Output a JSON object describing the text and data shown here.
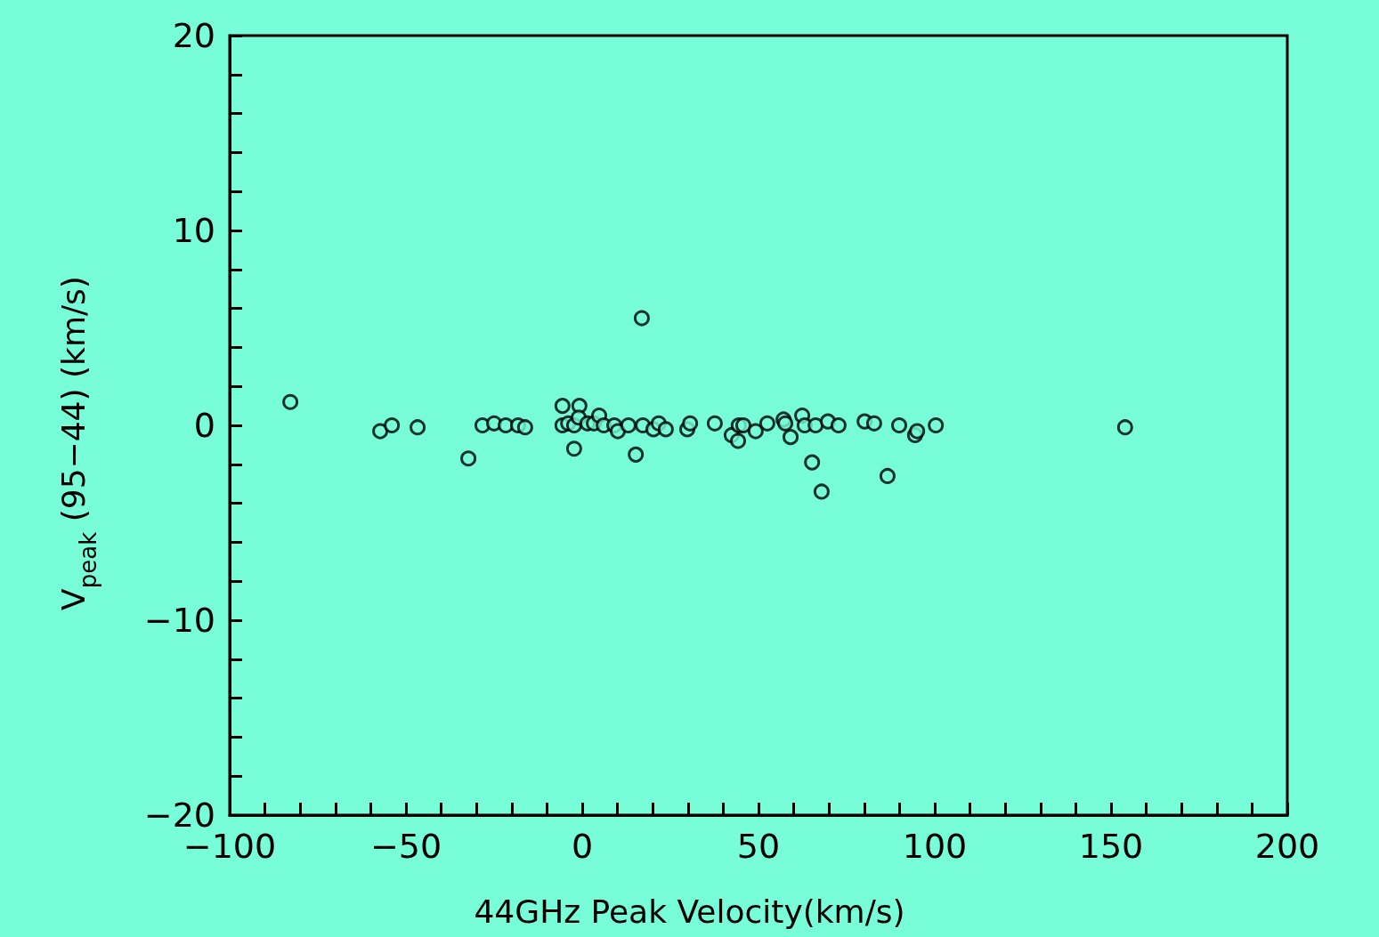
{
  "chart_data": {
    "type": "scatter",
    "xlabel": "44GHz Peak Velocity(km/s)",
    "ylabel": "V$_{peak}$ (95−44) (km/s)",
    "xlim": [
      -100,
      200
    ],
    "xticks": [
      -100,
      {
        "value": -90,
        "label": null
      },
      {
        "value": -80,
        "label": null
      },
      {
        "value": -70,
        "label": null
      },
      {
        "value": -60,
        "label": null
      },
      -50,
      {
        "value": -40,
        "label": null
      },
      {
        "value": -30,
        "label": null
      },
      {
        "value": -20,
        "label": null
      },
      {
        "value": -10,
        "label": null
      },
      0,
      {
        "value": 10,
        "label": null
      },
      {
        "value": 20,
        "label": null
      },
      {
        "value": 30,
        "label": null
      },
      {
        "value": 40,
        "label": null
      },
      50,
      {
        "value": 60,
        "label": null
      },
      {
        "value": 70,
        "label": null
      },
      {
        "value": 80,
        "label": null
      },
      {
        "value": 90,
        "label": null
      },
      100,
      {
        "value": 110,
        "label": null
      },
      {
        "value": 120,
        "label": null
      },
      {
        "value": 130,
        "label": null
      },
      {
        "value": 140,
        "label": null
      },
      150,
      {
        "value": 160,
        "label": null
      },
      {
        "value": 170,
        "label": null
      },
      {
        "value": 180,
        "label": null
      },
      {
        "value": 190,
        "label": null
      },
      200
    ],
    "ylim": [
      -20,
      20
    ],
    "yticks": [
      -20,
      {
        "value": -18,
        "label": null
      },
      {
        "value": -16,
        "label": null
      },
      {
        "value": -14,
        "label": null
      },
      {
        "value": -12,
        "label": null
      },
      -10,
      {
        "value": -8,
        "label": null
      },
      {
        "value": -6,
        "label": null
      },
      {
        "value": -4,
        "label": null
      },
      {
        "value": -2,
        "label": null
      },
      0,
      {
        "value": 2,
        "label": null
      },
      {
        "value": 4,
        "label": null
      },
      {
        "value": 6,
        "label": null
      },
      {
        "value": 8,
        "label": null
      },
      10,
      {
        "value": 12,
        "label": null
      },
      {
        "value": 14,
        "label": null
      },
      {
        "value": 16,
        "label": null
      },
      {
        "value": 18,
        "label": null
      },
      20
    ],
    "marker": "circle",
    "series": [
      {
        "color": "#000000",
        "x": [
          -82.8,
          -57.3,
          -54.0,
          -46.7,
          -32.3,
          -28.3,
          -25.0,
          -21.7,
          -18.2,
          -16.2,
          -5.6,
          -5.6,
          -2.3,
          -0.8,
          -4.0,
          -2.3,
          -1.0,
          1.5,
          3.3,
          4.8,
          6.1,
          9.1,
          10.1,
          13.1,
          15.2,
          16.9,
          17.2,
          20.2,
          21.7,
          23.7,
          29.8,
          30.6,
          37.6,
          42.4,
          44.2,
          44.4,
          45.7,
          49.2,
          52.5,
          57.1,
          57.6,
          59.1,
          62.4,
          65.2,
          63.1,
          66.2,
          67.9,
          69.7,
          72.7,
          80.1,
          82.8,
          86.6,
          89.9,
          94.4,
          95.0,
          100.3,
          154.0
        ],
        "values": [
          1.2,
          -0.3,
          0,
          -0.1,
          -1.7,
          0,
          0.1,
          0,
          0,
          -0.1,
          0,
          1.0,
          -1.2,
          1.0,
          0.1,
          0,
          0.4,
          0.1,
          0.1,
          0.5,
          0,
          0,
          -0.3,
          0,
          -1.5,
          5.5,
          0,
          -0.2,
          0.1,
          -0.2,
          -0.2,
          0.1,
          0.1,
          -0.5,
          -0.8,
          0,
          0,
          -0.3,
          0.1,
          0.3,
          0.1,
          -0.6,
          0.5,
          -1.9,
          0,
          0,
          -3.4,
          0.2,
          0,
          0.2,
          0.1,
          -2.6,
          0,
          -0.5,
          -0.3,
          0,
          -0.1
        ]
      }
    ]
  }
}
